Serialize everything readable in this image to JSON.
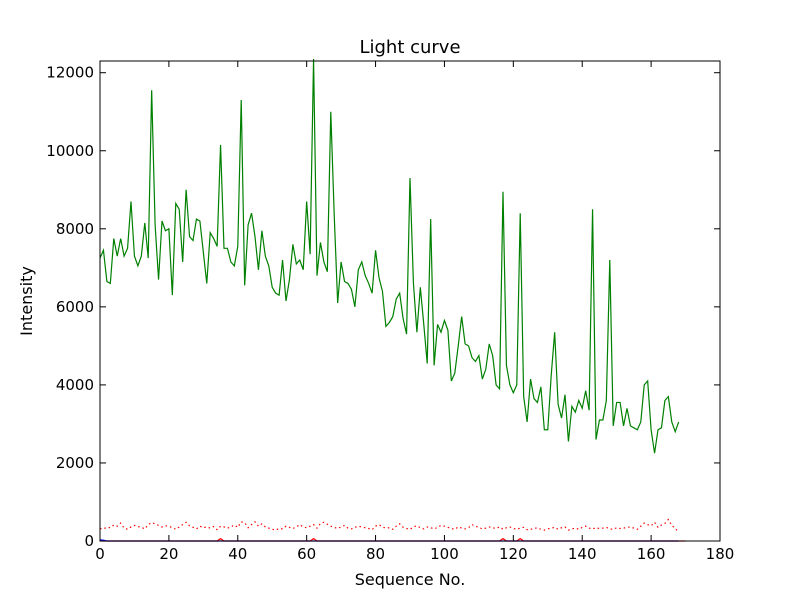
{
  "chart_data": {
    "type": "line",
    "title": "Light curve",
    "xlabel": "Sequence No.",
    "ylabel": "Intensity",
    "xlim": [
      0,
      180
    ],
    "ylim": [
      0,
      12300
    ],
    "xticks": [
      0,
      20,
      40,
      60,
      80,
      100,
      120,
      140,
      160,
      180
    ],
    "yticks": [
      0,
      2000,
      4000,
      6000,
      8000,
      10000,
      12000
    ],
    "grid": false,
    "legend": "none",
    "series": [
      {
        "color": "#008000",
        "style": "solid",
        "y": [
          7250,
          7450,
          6650,
          6600,
          7750,
          7300,
          7750,
          7300,
          7500,
          8700,
          7300,
          7050,
          7300,
          8150,
          7250,
          11550,
          8100,
          6700,
          8200,
          7950,
          8000,
          6300,
          8650,
          8500,
          7150,
          9000,
          7800,
          7700,
          8250,
          8200,
          7400,
          6600,
          7900,
          7750,
          7550,
          10150,
          7500,
          7500,
          7150,
          7050,
          7550,
          11300,
          6550,
          8100,
          8400,
          7800,
          6950,
          7950,
          7300,
          7050,
          6500,
          6350,
          6300,
          7200,
          6150,
          6700,
          7600,
          7100,
          7200,
          6950,
          8700,
          7350,
          12350,
          6800,
          7650,
          7150,
          6900,
          11000,
          8350,
          6100,
          7150,
          6650,
          6600,
          6450,
          6000,
          6950,
          7150,
          6800,
          6600,
          6350,
          7450,
          6750,
          6400,
          5500,
          5600,
          5750,
          6200,
          6350,
          5700,
          5300,
          9300,
          6600,
          5350,
          6500,
          5550,
          4550,
          8250,
          4500,
          5550,
          5350,
          5650,
          5400,
          4100,
          4300,
          5000,
          5750,
          5050,
          5000,
          4700,
          4600,
          4750,
          4150,
          4400,
          5050,
          4750,
          4000,
          3900,
          8950,
          4500,
          4000,
          3800,
          4000,
          8400,
          3700,
          3050,
          4150,
          3650,
          3550,
          3950,
          2850,
          2850,
          4250,
          5350,
          3500,
          3150,
          3750,
          2550,
          3450,
          3300,
          3600,
          3400,
          3850,
          3350,
          8500,
          2600,
          3100,
          3100,
          3600,
          7200,
          2950,
          3550,
          3550,
          2950,
          3400,
          2950,
          2900,
          2850,
          3050,
          4000,
          4100,
          2850,
          2250,
          2850,
          2900,
          3600,
          3700,
          3050,
          2800,
          3050
        ]
      },
      {
        "color": "#ff0000",
        "style": "dotted",
        "y": [
          320,
          310,
          350,
          340,
          410,
          380,
          460,
          330,
          300,
          360,
          400,
          370,
          350,
          310,
          420,
          470,
          440,
          400,
          360,
          390,
          380,
          340,
          300,
          360,
          420,
          480,
          390,
          350,
          310,
          380,
          340,
          360,
          330,
          370,
          290,
          380,
          360,
          330,
          360,
          410,
          350,
          490,
          470,
          340,
          420,
          490,
          380,
          440,
          360,
          330,
          300,
          280,
          320,
          310,
          380,
          350,
          320,
          360,
          420,
          360,
          340,
          380,
          420,
          330,
          450,
          480,
          430,
          380,
          350,
          320,
          360,
          400,
          330,
          310,
          350,
          380,
          360,
          340,
          320,
          290,
          380,
          420,
          360,
          330,
          340,
          300,
          380,
          440,
          350,
          320,
          300,
          360,
          390,
          340,
          310,
          360,
          340,
          310,
          350,
          400,
          380,
          350,
          320,
          300,
          360,
          330,
          310,
          340,
          420,
          380,
          350,
          310,
          330,
          360,
          340,
          320,
          360,
          300,
          340,
          360,
          320,
          300,
          330,
          350,
          290,
          300,
          320,
          340,
          300,
          280,
          310,
          330,
          350,
          300,
          340,
          360,
          280,
          310,
          330,
          300,
          350,
          380,
          330,
          310,
          340,
          320,
          330,
          350,
          310,
          300,
          340,
          320,
          330,
          350,
          360,
          330,
          300,
          380,
          460,
          420,
          390,
          480,
          350,
          410,
          450,
          550,
          400,
          320,
          230
        ]
      },
      {
        "color": "#ff0000",
        "style": "solid",
        "y": [
          0,
          0,
          0,
          0,
          0,
          0,
          0,
          0,
          0,
          0,
          0,
          0,
          0,
          0,
          0,
          0,
          0,
          0,
          0,
          0,
          0,
          0,
          0,
          0,
          0,
          0,
          0,
          0,
          0,
          0,
          0,
          0,
          0,
          0,
          0,
          60,
          0,
          0,
          0,
          0,
          0,
          0,
          0,
          0,
          0,
          0,
          0,
          0,
          0,
          0,
          0,
          0,
          0,
          0,
          0,
          0,
          0,
          0,
          0,
          0,
          0,
          0,
          60,
          0,
          0,
          0,
          0,
          0,
          0,
          0,
          0,
          0,
          0,
          0,
          0,
          0,
          0,
          0,
          0,
          0,
          0,
          0,
          0,
          0,
          0,
          0,
          0,
          0,
          0,
          0,
          0,
          0,
          0,
          0,
          0,
          0,
          0,
          0,
          0,
          0,
          0,
          0,
          0,
          0,
          0,
          0,
          0,
          0,
          0,
          0,
          0,
          0,
          0,
          0,
          0,
          0,
          0,
          60,
          0,
          0,
          0,
          0,
          60,
          0,
          0,
          0,
          0,
          0,
          0,
          0,
          0,
          0,
          0,
          0,
          0,
          0,
          0,
          0,
          0,
          0,
          0,
          0,
          0,
          0,
          0,
          0,
          0,
          0,
          0,
          0,
          0,
          0,
          0,
          0,
          0,
          0,
          0,
          0,
          0,
          0,
          0,
          0,
          0,
          0,
          0,
          0,
          0,
          0,
          0,
          0,
          0
        ]
      },
      {
        "color": "#0000ff",
        "style": "solid",
        "y": [
          30,
          20,
          0,
          0,
          0,
          0,
          0,
          0,
          0,
          0,
          0,
          0,
          0,
          0,
          0,
          0,
          0,
          0,
          0,
          0,
          0,
          0,
          0,
          0,
          0,
          0,
          0,
          0,
          0,
          0,
          0,
          0,
          0,
          0,
          0,
          0,
          0,
          0,
          0,
          0,
          0,
          0,
          0,
          0,
          0,
          0,
          0,
          0,
          0,
          0,
          0,
          0,
          0,
          0,
          0,
          0,
          0,
          0,
          0,
          0,
          0,
          0,
          0,
          0,
          0,
          0,
          0,
          0,
          0,
          0,
          0,
          0,
          0,
          0,
          0,
          0,
          0,
          0,
          0,
          0,
          0,
          0,
          0,
          0,
          0,
          0,
          0,
          0,
          0,
          0,
          0,
          0,
          0,
          0,
          0,
          0,
          0,
          0,
          0,
          0,
          0,
          0,
          0,
          0,
          0,
          0,
          0,
          0,
          0,
          0,
          0,
          0,
          0,
          0,
          0,
          0,
          0,
          0,
          0,
          0,
          0,
          0,
          0,
          0,
          0,
          0,
          0,
          0,
          0,
          0,
          0,
          0,
          0,
          0,
          0,
          0,
          0,
          0,
          0,
          0,
          0,
          0,
          0,
          0,
          0,
          0,
          0,
          0,
          0,
          0,
          0,
          0,
          0,
          0,
          0,
          0,
          0,
          0,
          0,
          0,
          0,
          0,
          0,
          0,
          0,
          0,
          0,
          0,
          0
        ]
      }
    ]
  }
}
